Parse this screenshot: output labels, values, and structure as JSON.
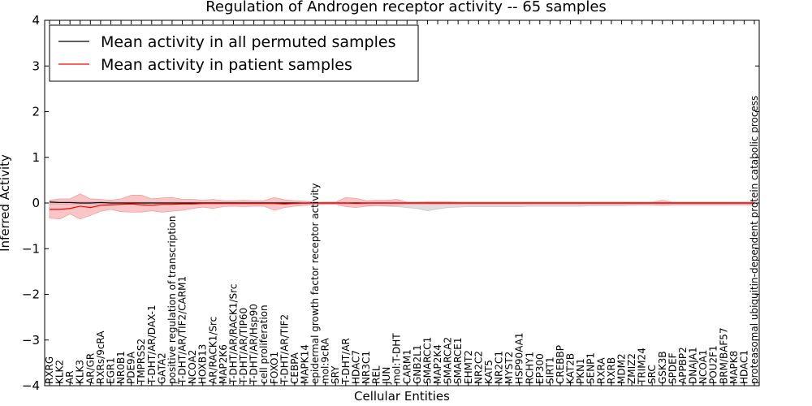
{
  "chart_data": {
    "type": "line",
    "title": "Regulation of Androgen receptor activity -- 65 samples",
    "xlabel": "Cellular Entities",
    "ylabel": "Inferred Activity",
    "ylim": [
      -4,
      4
    ],
    "yticks": [
      4,
      3,
      2,
      1,
      0,
      -1,
      -2,
      -3,
      -4
    ],
    "ytick_labels": [
      "4",
      "3",
      "2",
      "1",
      "0",
      "−1",
      "−2",
      "−3",
      "−4"
    ],
    "legend_position": "top-left",
    "colors": {
      "permuted": "#000000",
      "patient": "#ff0000",
      "patient_band": "#f4a0a0",
      "permuted_band": "#c8c8c8"
    },
    "categories": [
      "RXRG",
      "KLK2",
      "AR",
      "KLK3",
      "AR/GR",
      "RXRs/9cRA",
      "EGR1",
      "NR0B1",
      "PDE9A",
      "TMPRSS2",
      "T-DHT/AR/DAX-1",
      "GATA2",
      "positive regulation of transcription",
      "T-DHT/AR/TIF2/CARM1",
      "NCOA2",
      "HOXB13",
      "AR/RACK1/Src",
      "MAP2K6",
      "T-DHT/AR/RACK1/Src",
      "T-DHT/AR/TIP60",
      "T-DHT/AR/Hsp90",
      "cell proliferation",
      "FOXO1",
      "T-DHT/AR/TIF2",
      "CEBPA",
      "MAPK14",
      "epidermal growth factor receptor activity",
      "mol:9cRA",
      "SRY",
      "T-DHT/AR",
      "HDAC7",
      "NR3C1",
      "REL",
      "JUN",
      "mol:T-DHT",
      "CARM1",
      "GNB2L1",
      "SMARCC1",
      "MAP2K4",
      "SMARCA2",
      "SMARCE1",
      "EHMT2",
      "NR2C2",
      "KAT5",
      "NR2C1",
      "MYST2",
      "HSP90AA1",
      "RCHY1",
      "EP300",
      "SIRT1",
      "CREBBP",
      "KAT2B",
      "PKN1",
      "SENP1",
      "RXRA",
      "RXRB",
      "MDM2",
      "ZMIZ2",
      "TRIM24",
      "SRC",
      "GSK3B",
      "SPDEF",
      "APPBP2",
      "DNAJA1",
      "NCOA1",
      "POU2F1",
      "BRM/BAF57",
      "MAPK8",
      "HDAC1",
      "proteasomal ubiquitin-dependent protein catabolic process"
    ],
    "series": [
      {
        "name": "Mean activity in all permuted samples",
        "values": [
          0.02,
          0.01,
          0.01,
          0.0,
          0.0,
          0.01,
          0.0,
          0.0,
          0.0,
          0.0,
          0.0,
          0.0,
          0.0,
          0.0,
          0.0,
          0.0,
          0.0,
          0.0,
          0.0,
          0.0,
          0.0,
          0.0,
          0.0,
          0.0,
          0.0,
          0.0,
          0.0,
          0.0,
          0.0,
          0.0,
          0.0,
          0.0,
          0.0,
          0.0,
          0.0,
          0.0,
          0.0,
          0.0,
          0.0,
          0.0,
          0.0,
          0.0,
          0.0,
          0.0,
          0.0,
          0.0,
          0.0,
          0.0,
          0.0,
          0.0,
          0.0,
          0.0,
          0.0,
          0.0,
          0.0,
          0.0,
          0.0,
          0.0,
          0.0,
          0.0,
          0.0,
          0.0,
          0.0,
          0.0,
          0.0,
          0.0,
          0.0,
          0.0,
          0.0,
          0.0
        ],
        "upper": [
          0.05,
          0.04,
          0.04,
          0.03,
          0.03,
          0.03,
          0.03,
          0.02,
          0.02,
          0.02,
          0.02,
          0.02,
          0.02,
          0.02,
          0.02,
          0.02,
          0.02,
          0.02,
          0.02,
          0.02,
          0.02,
          0.02,
          0.02,
          0.02,
          0.02,
          0.02,
          0.02,
          0.02,
          0.02,
          0.02,
          0.02,
          0.02,
          0.02,
          0.02,
          0.02,
          0.02,
          0.02,
          0.03,
          0.03,
          0.03,
          0.02,
          0.02,
          0.02,
          0.02,
          0.02,
          0.02,
          0.02,
          0.02,
          0.02,
          0.02,
          0.02,
          0.02,
          0.02,
          0.02,
          0.02,
          0.02,
          0.02,
          0.02,
          0.02,
          0.02,
          0.02,
          0.02,
          0.02,
          0.02,
          0.02,
          0.02,
          0.02,
          0.02,
          0.02,
          0.02
        ],
        "lower": [
          -0.03,
          -0.03,
          -0.03,
          -0.03,
          -0.03,
          -0.03,
          -0.03,
          -0.03,
          -0.03,
          -0.03,
          -0.03,
          -0.03,
          -0.03,
          -0.03,
          -0.03,
          -0.03,
          -0.03,
          -0.03,
          -0.03,
          -0.03,
          -0.03,
          -0.03,
          -0.03,
          -0.03,
          -0.03,
          -0.03,
          -0.03,
          -0.03,
          -0.03,
          -0.03,
          -0.04,
          -0.05,
          -0.06,
          -0.07,
          -0.08,
          -0.1,
          -0.12,
          -0.17,
          -0.13,
          -0.1,
          -0.09,
          -0.08,
          -0.08,
          -0.08,
          -0.08,
          -0.08,
          -0.08,
          -0.07,
          -0.07,
          -0.07,
          -0.07,
          -0.07,
          -0.07,
          -0.06,
          -0.06,
          -0.06,
          -0.06,
          -0.05,
          -0.05,
          -0.05,
          -0.05,
          -0.05,
          -0.05,
          -0.05,
          -0.05,
          -0.05,
          -0.05,
          -0.05,
          -0.05,
          -0.05
        ]
      },
      {
        "name": "Mean activity in patient samples",
        "values": [
          -0.14,
          -0.14,
          -0.12,
          -0.07,
          -0.1,
          -0.05,
          -0.04,
          -0.03,
          -0.02,
          -0.04,
          -0.05,
          -0.03,
          -0.03,
          -0.02,
          -0.02,
          -0.01,
          -0.01,
          -0.01,
          -0.01,
          -0.01,
          -0.01,
          -0.01,
          -0.01,
          -0.02,
          -0.01,
          0.0,
          0.0,
          0.0,
          0.0,
          0.0,
          -0.01,
          0.0,
          0.0,
          0.0,
          0.0,
          0.0,
          0.0,
          0.0,
          0.0,
          0.0,
          0.0,
          0.0,
          0.0,
          0.0,
          0.0,
          0.0,
          0.0,
          0.0,
          0.0,
          0.0,
          0.0,
          0.0,
          0.0,
          0.0,
          0.0,
          0.0,
          0.0,
          0.0,
          0.0,
          0.0,
          0.0,
          0.0,
          0.0,
          0.0,
          0.0,
          0.0,
          0.0,
          0.0,
          0.0,
          0.0
        ],
        "upper": [
          0.06,
          0.09,
          0.09,
          0.2,
          0.09,
          0.08,
          0.06,
          0.09,
          0.17,
          0.17,
          0.09,
          0.11,
          0.12,
          0.08,
          0.08,
          0.06,
          0.08,
          0.05,
          0.05,
          0.06,
          0.05,
          0.05,
          0.12,
          0.07,
          0.05,
          0.04,
          0.02,
          0.02,
          0.02,
          0.12,
          0.1,
          0.05,
          0.06,
          0.06,
          0.08,
          0.02,
          0.02,
          0.02,
          0.02,
          0.02,
          0.02,
          0.02,
          0.02,
          0.02,
          0.02,
          0.02,
          0.02,
          0.02,
          0.02,
          0.02,
          0.02,
          0.02,
          0.02,
          0.02,
          0.02,
          0.02,
          0.02,
          0.02,
          0.02,
          0.02,
          0.06,
          0.02,
          0.02,
          0.02,
          0.02,
          0.02,
          0.02,
          0.02,
          0.02,
          0.02
        ],
        "lower": [
          -0.33,
          -0.35,
          -0.24,
          -0.35,
          -0.27,
          -0.18,
          -0.14,
          -0.19,
          -0.2,
          -0.2,
          -0.17,
          -0.2,
          -0.18,
          -0.16,
          -0.12,
          -0.09,
          -0.12,
          -0.08,
          -0.07,
          -0.08,
          -0.07,
          -0.07,
          -0.16,
          -0.1,
          -0.07,
          -0.05,
          -0.03,
          -0.03,
          -0.03,
          -0.08,
          -0.1,
          -0.07,
          -0.06,
          -0.06,
          -0.05,
          -0.03,
          -0.03,
          -0.03,
          -0.03,
          -0.03,
          -0.03,
          -0.03,
          -0.03,
          -0.03,
          -0.03,
          -0.03,
          -0.03,
          -0.03,
          -0.03,
          -0.03,
          -0.03,
          -0.03,
          -0.03,
          -0.03,
          -0.03,
          -0.03,
          -0.03,
          -0.03,
          -0.03,
          -0.03,
          -0.05,
          -0.03,
          -0.03,
          -0.03,
          -0.03,
          -0.03,
          -0.03,
          -0.03,
          -0.03,
          -0.03
        ]
      }
    ]
  }
}
